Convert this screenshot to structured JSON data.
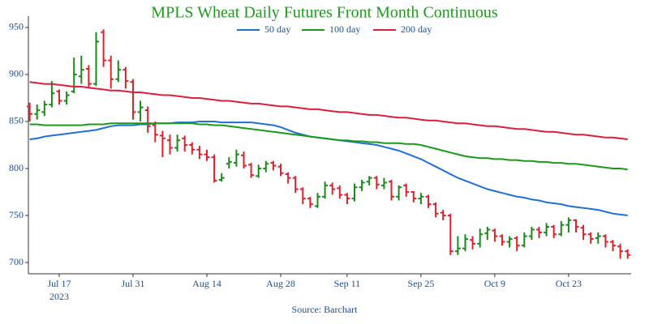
{
  "chart_data": {
    "type": "ohlc",
    "title": "MPLS Wheat Daily Futures Front Month Continuous",
    "source": "Source: Barchart",
    "x_year": "2023",
    "categories": [
      null,
      null,
      null,
      null,
      "Jul 17",
      null,
      null,
      null,
      null,
      null,
      null,
      null,
      null,
      null,
      "Jul 31",
      null,
      null,
      null,
      null,
      null,
      null,
      null,
      null,
      null,
      "Aug 14",
      null,
      null,
      null,
      null,
      null,
      null,
      null,
      null,
      null,
      "Aug 28",
      null,
      null,
      null,
      null,
      null,
      null,
      null,
      null,
      "Sep 11",
      null,
      null,
      null,
      null,
      null,
      null,
      null,
      null,
      null,
      "Sep 25",
      null,
      null,
      null,
      null,
      null,
      null,
      null,
      null,
      null,
      "Oct 9",
      null,
      null,
      null,
      null,
      null,
      null,
      null,
      null,
      null,
      "Oct 23",
      null,
      null,
      null,
      null,
      null,
      null,
      null,
      null
    ],
    "ohlc": {
      "open": [
        866,
        858,
        860,
        868,
        882,
        872,
        882,
        898,
        906,
        890,
        945,
        915,
        895,
        905,
        892,
        860,
        862,
        846,
        835,
        830,
        822,
        832,
        825,
        820,
        815,
        812,
        788,
        805,
        806,
        814,
        804,
        792,
        800,
        806,
        802,
        794,
        790,
        778,
        768,
        760,
        770,
        782,
        779,
        772,
        768,
        780,
        786,
        790,
        782,
        786,
        770,
        782,
        775,
        768,
        770,
        762,
        753,
        750,
        712,
        715,
        724,
        720,
        731,
        734,
        728,
        722,
        726,
        718,
        728,
        735,
        732,
        738,
        730,
        740,
        745,
        737,
        730,
        726,
        728,
        722,
        717,
        712
      ],
      "high": [
        870,
        868,
        872,
        893,
        884,
        882,
        918,
        920,
        910,
        945,
        948,
        920,
        915,
        908,
        895,
        872,
        866,
        850,
        840,
        836,
        836,
        835,
        828,
        824,
        820,
        815,
        795,
        812,
        820,
        818,
        806,
        804,
        808,
        808,
        805,
        796,
        792,
        780,
        770,
        774,
        786,
        785,
        782,
        774,
        784,
        788,
        792,
        792,
        790,
        788,
        782,
        784,
        776,
        774,
        772,
        764,
        756,
        752,
        728,
        730,
        728,
        736,
        738,
        736,
        730,
        728,
        728,
        732,
        738,
        738,
        742,
        740,
        744,
        748,
        746,
        740,
        732,
        732,
        730,
        724,
        720,
        714
      ],
      "low": [
        850,
        852,
        856,
        865,
        868,
        868,
        880,
        890,
        886,
        888,
        908,
        885,
        892,
        885,
        852,
        850,
        838,
        828,
        812,
        815,
        818,
        818,
        815,
        810,
        808,
        785,
        786,
        800,
        802,
        800,
        790,
        790,
        796,
        798,
        792,
        784,
        774,
        762,
        758,
        758,
        768,
        772,
        768,
        762,
        765,
        776,
        782,
        778,
        778,
        766,
        766,
        770,
        764,
        762,
        758,
        748,
        745,
        708,
        708,
        712,
        714,
        716,
        724,
        722,
        718,
        716,
        712,
        716,
        724,
        726,
        728,
        726,
        728,
        732,
        732,
        724,
        720,
        720,
        716,
        712,
        704,
        704
      ],
      "close": [
        858,
        862,
        868,
        880,
        872,
        878,
        900,
        905,
        890,
        935,
        915,
        895,
        905,
        893,
        860,
        865,
        845,
        836,
        832,
        822,
        830,
        825,
        820,
        815,
        812,
        787,
        790,
        807,
        815,
        803,
        793,
        800,
        805,
        803,
        795,
        790,
        778,
        768,
        762,
        770,
        782,
        778,
        772,
        768,
        780,
        785,
        790,
        783,
        785,
        770,
        780,
        775,
        768,
        770,
        762,
        752,
        750,
        712,
        715,
        725,
        720,
        730,
        735,
        728,
        722,
        725,
        718,
        728,
        735,
        732,
        738,
        730,
        740,
        745,
        738,
        730,
        725,
        728,
        722,
        718,
        712,
        708
      ]
    },
    "up_color": "#1a8a1a",
    "down_color": "#e0202a",
    "series": [
      {
        "name": "50 day",
        "color": "#1f6fd6",
        "values": [
          831,
          832,
          834,
          835,
          836,
          837,
          838,
          839,
          840,
          841,
          843,
          845,
          846,
          846,
          846,
          847,
          847,
          848,
          848,
          848,
          849,
          849,
          849,
          850,
          850,
          850,
          849,
          849,
          849,
          849,
          849,
          848,
          847,
          846,
          844,
          841,
          838,
          836,
          834,
          833,
          832,
          831,
          830,
          829,
          828,
          827,
          826,
          825,
          823,
          821,
          819,
          816,
          813,
          810,
          806,
          802,
          798,
          794,
          790,
          787,
          784,
          781,
          778,
          776,
          774,
          772,
          770,
          769,
          767,
          766,
          764,
          763,
          762,
          760,
          759,
          758,
          757,
          756,
          754,
          752,
          751,
          750
        ]
      },
      {
        "name": "100 day",
        "color": "#1a9a1a",
        "values": [
          847,
          847,
          846,
          846,
          846,
          846,
          846,
          846,
          847,
          847,
          847,
          848,
          848,
          848,
          848,
          848,
          848,
          848,
          848,
          848,
          848,
          848,
          848,
          847,
          847,
          846,
          846,
          845,
          844,
          843,
          842,
          841,
          840,
          839,
          838,
          837,
          836,
          835,
          834,
          833,
          832,
          831,
          830,
          830,
          829,
          829,
          828,
          828,
          827,
          827,
          827,
          826,
          826,
          825,
          823,
          821,
          819,
          817,
          815,
          813,
          812,
          811,
          811,
          810,
          810,
          809,
          809,
          808,
          808,
          807,
          807,
          806,
          806,
          805,
          805,
          804,
          803,
          802,
          801,
          800,
          800,
          799
        ]
      },
      {
        "name": "200 day",
        "color": "#dc1f3c",
        "values": [
          892,
          891,
          890,
          890,
          889,
          888,
          887,
          887,
          886,
          885,
          884,
          883,
          883,
          882,
          881,
          881,
          880,
          879,
          878,
          878,
          877,
          876,
          875,
          875,
          874,
          873,
          872,
          872,
          871,
          870,
          869,
          869,
          868,
          867,
          866,
          866,
          865,
          864,
          863,
          863,
          862,
          861,
          860,
          860,
          859,
          858,
          857,
          857,
          856,
          855,
          854,
          854,
          853,
          852,
          851,
          851,
          850,
          849,
          848,
          848,
          847,
          846,
          845,
          845,
          844,
          843,
          842,
          842,
          841,
          840,
          839,
          839,
          838,
          837,
          836,
          836,
          835,
          834,
          833,
          833,
          832,
          831
        ]
      }
    ],
    "ylim": [
      688,
      962
    ],
    "yticks": [
      700,
      750,
      800,
      850,
      900,
      950
    ]
  }
}
